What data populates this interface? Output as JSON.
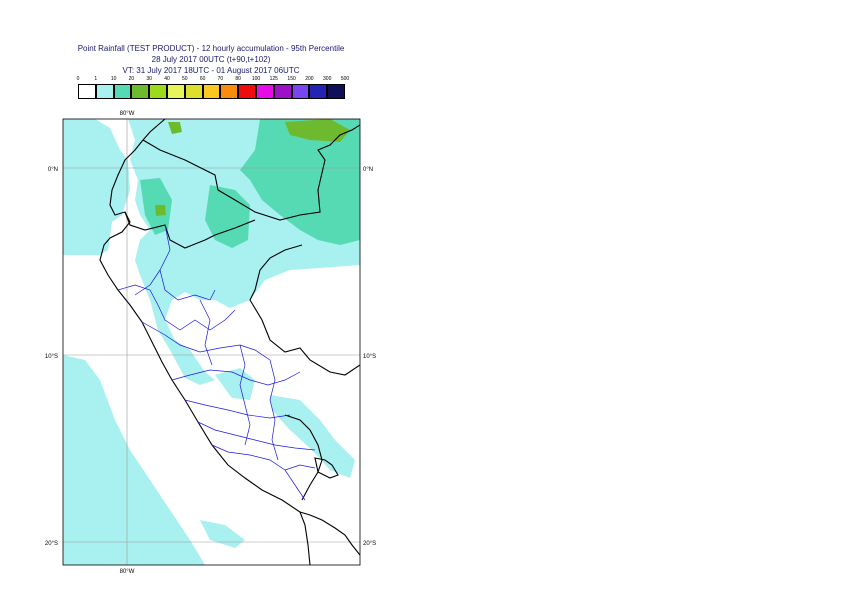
{
  "header": {
    "title_line1": "Point Rainfall (TEST PRODUCT) - 12 hourly accumulation - 95th Percentile",
    "title_line2": "28 July 2017 00UTC (t+90,t+102)",
    "title_line3": "VT: 31 July 2017 18UTC - 01 August 2017 06UTC"
  },
  "legend": {
    "labels": [
      "0",
      "1",
      "10",
      "20",
      "30",
      "40",
      "50",
      "60",
      "70",
      "80",
      "100",
      "125",
      "150",
      "200",
      "300",
      "500"
    ],
    "colors": [
      "#ffffff",
      "#a9f0f0",
      "#55dab4",
      "#6dba2f",
      "#9bdb1c",
      "#e6f55a",
      "#dede2c",
      "#fac81e",
      "#fa8b0f",
      "#f00c0c",
      "#e60ce6",
      "#9b10c8",
      "#7845f0",
      "#2323b4",
      "#0f0f5a"
    ]
  },
  "map": {
    "lon_labels": {
      "top": "80°W",
      "bottom": "80°W"
    },
    "lat_labels": {
      "lat0": "0°N",
      "lat10": "10°S",
      "lat20": "20°S"
    },
    "colors": {
      "light_rain": "#a9f0f0",
      "moderate_rain": "#55dab4",
      "heavy_rain": "#6dba2f",
      "coast": "#000000",
      "admin_border": "#1a1adc",
      "gridline": "#9a9a9a"
    }
  }
}
